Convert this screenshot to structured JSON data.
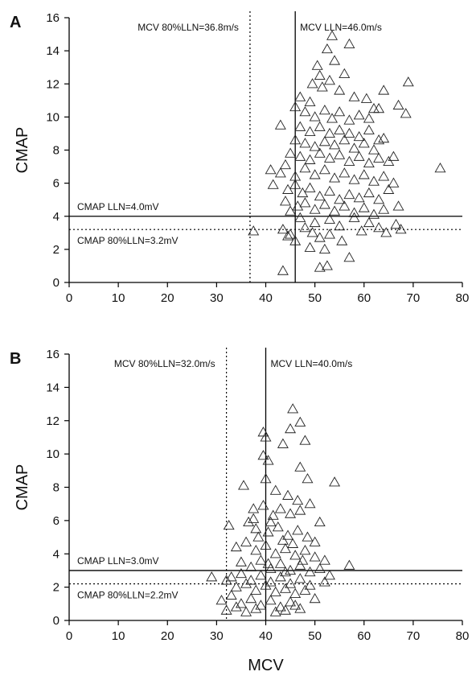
{
  "chart_data": [
    {
      "type": "scatter",
      "panel": "A",
      "xlabel": "",
      "ylabel": "CMAP",
      "xlim": [
        0,
        80
      ],
      "ylim": [
        0,
        16
      ],
      "xticks": [
        "0",
        "10",
        "20",
        "30",
        "40",
        "50",
        "60",
        "70",
        "80"
      ],
      "yticks": [
        "0",
        "2",
        "4",
        "6",
        "8",
        "10",
        "12",
        "14",
        "16"
      ],
      "marker": "open-triangle",
      "grid": false,
      "reference_lines": [
        {
          "axis": "x",
          "value": 46.0,
          "style": "solid",
          "label": "MCV LLN=46.0m/s"
        },
        {
          "axis": "x",
          "value": 36.8,
          "style": "dotted",
          "label": "MCV 80%LLN=36.8m/s"
        },
        {
          "axis": "y",
          "value": 4.0,
          "style": "solid",
          "label": "CMAP LLN=4.0mV"
        },
        {
          "axis": "y",
          "value": 3.2,
          "style": "dotted",
          "label": "CMAP 80%LLN=3.2mV"
        }
      ],
      "points": [
        [
          53.5,
          14.9
        ],
        [
          57,
          14.4
        ],
        [
          52.5,
          14.1
        ],
        [
          50.5,
          13.1
        ],
        [
          54,
          13.4
        ],
        [
          56,
          12.6
        ],
        [
          51,
          12.5
        ],
        [
          53,
          12.2
        ],
        [
          49.5,
          12.0
        ],
        [
          69,
          12.1
        ],
        [
          47,
          11.2
        ],
        [
          51.5,
          11.8
        ],
        [
          55,
          11.6
        ],
        [
          58,
          11.2
        ],
        [
          60.5,
          11.1
        ],
        [
          64,
          11.6
        ],
        [
          67,
          10.7
        ],
        [
          68.5,
          10.2
        ],
        [
          62,
          10.5
        ],
        [
          46,
          10.6
        ],
        [
          48,
          10.3
        ],
        [
          49,
          10.9
        ],
        [
          50,
          10.0
        ],
        [
          52,
          10.4
        ],
        [
          53.5,
          9.9
        ],
        [
          55,
          10.3
        ],
        [
          57,
          9.8
        ],
        [
          59,
          10.1
        ],
        [
          61,
          9.9
        ],
        [
          63,
          10.5
        ],
        [
          43,
          9.5
        ],
        [
          47,
          9.4
        ],
        [
          49,
          9.1
        ],
        [
          51,
          9.4
        ],
        [
          53,
          9.0
        ],
        [
          55,
          9.2
        ],
        [
          57,
          9.0
        ],
        [
          59,
          8.8
        ],
        [
          61,
          9.2
        ],
        [
          63,
          8.6
        ],
        [
          46,
          8.6
        ],
        [
          48,
          8.4
        ],
        [
          50,
          8.2
        ],
        [
          52,
          8.5
        ],
        [
          54,
          8.3
        ],
        [
          56,
          8.6
        ],
        [
          58,
          8.1
        ],
        [
          60,
          8.4
        ],
        [
          62,
          8.0
        ],
        [
          64,
          8.7
        ],
        [
          45,
          7.8
        ],
        [
          47,
          7.6
        ],
        [
          49,
          7.4
        ],
        [
          51,
          7.8
        ],
        [
          53,
          7.5
        ],
        [
          55,
          7.7
        ],
        [
          57,
          7.3
        ],
        [
          59,
          7.6
        ],
        [
          61,
          7.2
        ],
        [
          63,
          7.5
        ],
        [
          65,
          7.3
        ],
        [
          66,
          7.6
        ],
        [
          75.5,
          6.9
        ],
        [
          41,
          6.8
        ],
        [
          43,
          6.6
        ],
        [
          44,
          7.1
        ],
        [
          46,
          6.4
        ],
        [
          48,
          6.9
        ],
        [
          50,
          6.5
        ],
        [
          52,
          6.8
        ],
        [
          54,
          6.3
        ],
        [
          56,
          6.6
        ],
        [
          58,
          6.2
        ],
        [
          60,
          6.5
        ],
        [
          62,
          6.1
        ],
        [
          64,
          6.4
        ],
        [
          66,
          6.0
        ],
        [
          41.5,
          5.9
        ],
        [
          44.5,
          5.6
        ],
        [
          46,
          5.9
        ],
        [
          47.5,
          5.4
        ],
        [
          49,
          5.7
        ],
        [
          51,
          5.2
        ],
        [
          53,
          5.5
        ],
        [
          55,
          5.0
        ],
        [
          57,
          5.3
        ],
        [
          59,
          5.1
        ],
        [
          61,
          5.4
        ],
        [
          63,
          5.0
        ],
        [
          65,
          5.6
        ],
        [
          44,
          4.9
        ],
        [
          46.5,
          4.6
        ],
        [
          48,
          4.8
        ],
        [
          50,
          4.4
        ],
        [
          52,
          4.7
        ],
        [
          54,
          4.3
        ],
        [
          56,
          4.6
        ],
        [
          58,
          4.2
        ],
        [
          60,
          4.5
        ],
        [
          62,
          4.1
        ],
        [
          64,
          4.4
        ],
        [
          67,
          4.6
        ],
        [
          45,
          4.3
        ],
        [
          47,
          3.9
        ],
        [
          50,
          3.6
        ],
        [
          53,
          3.8
        ],
        [
          55,
          3.4
        ],
        [
          58,
          3.9
        ],
        [
          61,
          3.6
        ],
        [
          63,
          3.3
        ],
        [
          66.5,
          3.5
        ],
        [
          67.5,
          3.2
        ],
        [
          64.5,
          3.0
        ],
        [
          37.5,
          3.1
        ],
        [
          43.5,
          3.2
        ],
        [
          44.5,
          2.8
        ],
        [
          46,
          2.5
        ],
        [
          49.5,
          3.0
        ],
        [
          51,
          2.7
        ],
        [
          53,
          2.9
        ],
        [
          49,
          2.1
        ],
        [
          52,
          2.0
        ],
        [
          55.5,
          2.5
        ],
        [
          57,
          1.5
        ],
        [
          51,
          0.9
        ],
        [
          52.5,
          1.0
        ],
        [
          43.5,
          0.7
        ],
        [
          45,
          2.9
        ],
        [
          48,
          3.3
        ],
        [
          59.5,
          3.1
        ]
      ]
    },
    {
      "type": "scatter",
      "panel": "B",
      "xlabel": "MCV",
      "ylabel": "CMAP",
      "xlim": [
        0,
        80
      ],
      "ylim": [
        0,
        16
      ],
      "xticks": [
        "0",
        "10",
        "20",
        "30",
        "40",
        "50",
        "60",
        "70",
        "80"
      ],
      "yticks": [
        "0",
        "2",
        "4",
        "6",
        "8",
        "10",
        "12",
        "14",
        "16"
      ],
      "marker": "open-triangle",
      "grid": false,
      "reference_lines": [
        {
          "axis": "x",
          "value": 40.0,
          "style": "solid",
          "label": "MCV LLN=40.0m/s"
        },
        {
          "axis": "x",
          "value": 32.0,
          "style": "dotted",
          "label": "MCV 80%LLN=32.0m/s"
        },
        {
          "axis": "y",
          "value": 3.0,
          "style": "solid",
          "label": "CMAP LLN=3.0mV"
        },
        {
          "axis": "y",
          "value": 2.2,
          "style": "dotted",
          "label": "CMAP 80%LLN=2.2mV"
        }
      ],
      "points": [
        [
          45.5,
          12.7
        ],
        [
          47,
          11.9
        ],
        [
          45,
          11.5
        ],
        [
          39.5,
          11.3
        ],
        [
          40,
          11.0
        ],
        [
          48,
          10.8
        ],
        [
          43.5,
          10.6
        ],
        [
          39.5,
          9.9
        ],
        [
          40.5,
          9.6
        ],
        [
          47,
          9.2
        ],
        [
          48.5,
          8.5
        ],
        [
          54,
          8.3
        ],
        [
          35.5,
          8.1
        ],
        [
          40,
          8.5
        ],
        [
          42,
          7.8
        ],
        [
          44.5,
          7.5
        ],
        [
          46.5,
          7.2
        ],
        [
          49,
          7.0
        ],
        [
          43,
          6.7
        ],
        [
          45,
          6.4
        ],
        [
          39.5,
          6.9
        ],
        [
          37.5,
          6.7
        ],
        [
          41.5,
          6.3
        ],
        [
          47,
          6.6
        ],
        [
          51,
          5.9
        ],
        [
          32.5,
          5.7
        ],
        [
          36.5,
          5.9
        ],
        [
          38,
          5.5
        ],
        [
          40.5,
          5.3
        ],
        [
          42.5,
          5.6
        ],
        [
          44.5,
          5.1
        ],
        [
          46.5,
          5.4
        ],
        [
          48.5,
          5.0
        ],
        [
          50,
          4.7
        ],
        [
          34,
          4.4
        ],
        [
          36,
          4.7
        ],
        [
          38,
          4.2
        ],
        [
          40,
          4.5
        ],
        [
          42,
          4.0
        ],
        [
          44,
          4.3
        ],
        [
          46,
          3.9
        ],
        [
          48,
          4.2
        ],
        [
          50,
          3.8
        ],
        [
          52,
          3.6
        ],
        [
          57,
          3.3
        ],
        [
          35,
          3.5
        ],
        [
          37,
          3.2
        ],
        [
          39,
          3.6
        ],
        [
          41,
          3.1
        ],
        [
          43,
          3.4
        ],
        [
          45,
          3.0
        ],
        [
          47,
          3.3
        ],
        [
          49,
          2.9
        ],
        [
          51,
          3.1
        ],
        [
          53,
          2.7
        ],
        [
          33,
          2.6
        ],
        [
          35,
          2.8
        ],
        [
          37,
          2.4
        ],
        [
          39,
          2.7
        ],
        [
          41,
          2.3
        ],
        [
          43,
          2.6
        ],
        [
          45,
          2.2
        ],
        [
          47,
          2.5
        ],
        [
          49,
          2.1
        ],
        [
          52,
          2.3
        ],
        [
          29,
          2.6
        ],
        [
          32,
          2.4
        ],
        [
          34,
          2.0
        ],
        [
          36,
          2.2
        ],
        [
          38,
          1.8
        ],
        [
          40,
          2.1
        ],
        [
          42,
          1.7
        ],
        [
          44,
          1.9
        ],
        [
          46,
          1.6
        ],
        [
          48,
          1.8
        ],
        [
          31,
          1.2
        ],
        [
          33,
          1.5
        ],
        [
          35,
          1.0
        ],
        [
          37,
          1.3
        ],
        [
          39,
          0.9
        ],
        [
          41,
          1.2
        ],
        [
          43,
          0.8
        ],
        [
          45,
          1.1
        ],
        [
          47,
          0.7
        ],
        [
          50,
          1.3
        ],
        [
          32,
          0.6
        ],
        [
          34,
          0.8
        ],
        [
          36,
          0.5
        ],
        [
          38,
          0.7
        ],
        [
          42,
          0.5
        ],
        [
          44,
          0.6
        ],
        [
          46,
          0.9
        ],
        [
          37.5,
          6.1
        ],
        [
          38.5,
          5.0
        ],
        [
          41,
          5.9
        ],
        [
          43.5,
          4.8
        ],
        [
          45.5,
          4.6
        ],
        [
          47.5,
          3.6
        ],
        [
          44,
          2.9
        ],
        [
          40.5,
          3.4
        ]
      ]
    }
  ]
}
